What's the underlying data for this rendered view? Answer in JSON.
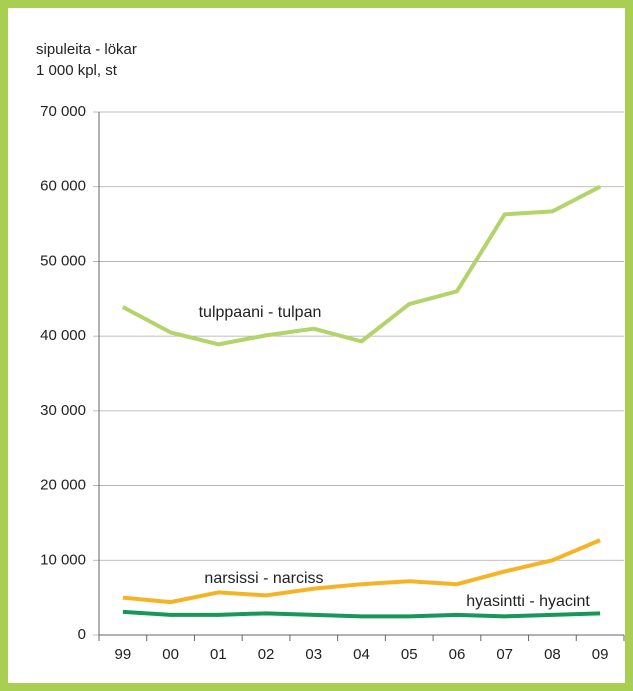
{
  "chart_data": {
    "type": "line",
    "title_lines": [
      "sipuleita - lökar",
      "1 000 kpl, st"
    ],
    "categories": [
      "99",
      "00",
      "01",
      "02",
      "03",
      "04",
      "05",
      "06",
      "07",
      "08",
      "09"
    ],
    "series": [
      {
        "name": "tulppaani - tulpan",
        "color": "#b3d36b",
        "values": [
          43900,
          40500,
          38900,
          40100,
          41000,
          39300,
          44300,
          46000,
          56300,
          56700,
          60000
        ]
      },
      {
        "name": "narsissi - narciss",
        "color": "#f6b326",
        "values": [
          5000,
          4400,
          5700,
          5300,
          6200,
          6800,
          7200,
          6800,
          8500,
          10000,
          12700
        ]
      },
      {
        "name": "hyasintti - hyacint",
        "color": "#17975a",
        "values": [
          3100,
          2700,
          2700,
          2900,
          2700,
          2500,
          2500,
          2700,
          2500,
          2700,
          2900
        ]
      }
    ],
    "ylim": [
      0,
      70000
    ],
    "yticks": [
      0,
      {
        "value": 10000,
        "label": "10 000"
      },
      {
        "value": 20000,
        "label": "20 000"
      },
      {
        "value": 30000,
        "label": "30 000"
      },
      {
        "value": 40000,
        "label": "40 000"
      },
      {
        "value": 50000,
        "label": "50 000"
      },
      {
        "value": 60000,
        "label": "60 000"
      },
      {
        "value": 70000,
        "label": "70 000"
      }
    ],
    "grid": true
  }
}
